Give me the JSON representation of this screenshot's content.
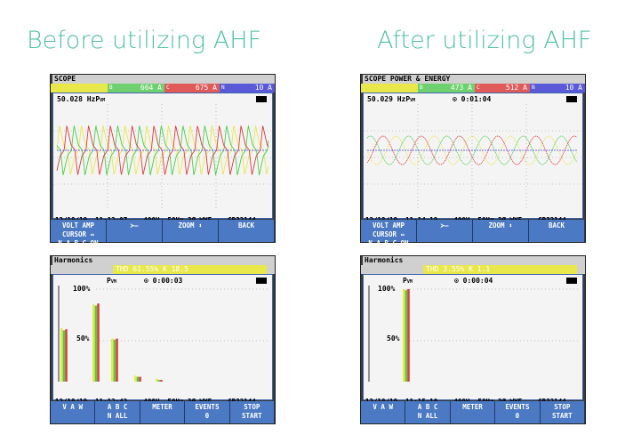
{
  "headings": {
    "before": "Before utilizing AHF",
    "after": "After utilizing AHF"
  },
  "panels": {
    "scope_before": {
      "title": "SCOPE",
      "meters": [
        {
          "label": "",
          "value": "",
          "color": "#e8e84a"
        },
        {
          "label": "B",
          "value": "664",
          "unit": "A",
          "color": "#6fd06f"
        },
        {
          "label": "C",
          "value": "675",
          "unit": "A",
          "color": "#e05a5a"
        },
        {
          "label": "N",
          "value": "10",
          "unit": "A",
          "color": "#5a5ad8"
        }
      ],
      "freq": "50.028 HzP",
      "freq_sub": "VM",
      "status": "12/18/19  11:12:07    400V  50Hz 3Ø WYE    GR32144",
      "softkeys": [
        {
          "line1": "VOLT AMP CURSOR ⇔",
          "line2": "N A B C  ON OFF"
        },
        {
          "line1": "",
          "line2": "≻—"
        },
        {
          "line1": "",
          "line2": "ZOOM ⬍"
        },
        {
          "line1": "",
          "line2": "BACK"
        }
      ]
    },
    "scope_after": {
      "title": "SCOPE POWER & ENERGY",
      "meters": [
        {
          "label": "",
          "value": "",
          "color": "#e8e84a"
        },
        {
          "label": "B",
          "value": "473",
          "unit": "A",
          "color": "#6fd06f"
        },
        {
          "label": "C",
          "value": "512",
          "unit": "A",
          "color": "#e05a5a"
        },
        {
          "label": "N",
          "value": "10",
          "unit": "A",
          "color": "#5a5ad8"
        }
      ],
      "freq": "50.029 HzP",
      "freq_sub": "VM",
      "timer": "⊙   0:01:04",
      "status": "12/18/19  11:14:19    400V  50Hz 3Ø WYE    GR32144",
      "softkeys": [
        {
          "line1": "VOLT AMP CURSOR ⇔",
          "line2": "N A B C  ON OFF"
        },
        {
          "line1": "",
          "line2": "≻—"
        },
        {
          "line1": "",
          "line2": "ZOOM ⬍"
        },
        {
          "line1": "",
          "line2": "BACK"
        }
      ]
    },
    "harm_before": {
      "title": "Harmonics",
      "thd": "THD  61.55% K   18.5",
      "pvm": "P",
      "pvm_sub": "VM",
      "timer": "⊙   0:00:03",
      "label_100": "100%",
      "label_50": "50%",
      "xlabels": [
        "THDDC",
        "1",
        "3",
        "5",
        "7",
        "9",
        "11",
        "13",
        "15",
        "17"
      ],
      "status": "12/18/19  11:12:42    400V  50Hz 3Ø WYE    GR32144",
      "softkeys": [
        {
          "line1": "",
          "line2": "V A W"
        },
        {
          "line1": "A  B  C",
          "line2": "N  ALL"
        },
        {
          "line1": "",
          "line2": "METER"
        },
        {
          "line1": "EVENTS",
          "line2": "0"
        },
        {
          "line1": "STOP",
          "line2": "START"
        }
      ]
    },
    "harm_after": {
      "title": "Harmonics",
      "thd": "THD   3.55% K    1.1",
      "pvm": "P",
      "pvm_sub": "VM",
      "timer": "⊙   0:00:04",
      "label_100": "100%",
      "label_50": "50%",
      "xlabels": [
        "THDDC",
        "1",
        "3",
        "5",
        "7",
        "9",
        "11",
        "13",
        "15",
        "17"
      ],
      "status": "12/18/19  11:15:10    400V  50Hz 3Ø WYE    GR32144",
      "softkeys": [
        {
          "line1": "",
          "line2": "V A W"
        },
        {
          "line1": "A  B  C",
          "line2": "N  ALL"
        },
        {
          "line1": "",
          "line2": "METER"
        },
        {
          "line1": "EVENTS",
          "line2": "0"
        },
        {
          "line1": "STOP",
          "line2": "START"
        }
      ]
    }
  },
  "chart_data": [
    {
      "type": "bar",
      "categories": [
        "THDDC",
        "1",
        "3",
        "5",
        "7",
        "9",
        "11",
        "13",
        "15",
        "17"
      ],
      "series": [
        {
          "values": [
            62,
            85,
            52,
            16,
            13,
            9,
            7,
            5,
            4,
            4
          ]
        },
        {
          "values": [
            60,
            84,
            51,
            15,
            12,
            8,
            6,
            4,
            3,
            3
          ]
        },
        {
          "values": [
            61,
            86,
            52,
            15,
            12,
            8,
            6,
            5,
            3,
            3
          ]
        }
      ],
      "ylim": [
        0,
        100
      ]
    },
    {
      "type": "bar",
      "categories": [
        "THDDC",
        "1",
        "3",
        "5",
        "7",
        "9",
        "11",
        "13",
        "15",
        "17"
      ],
      "series": [
        {
          "values": [
            2,
            100,
            1,
            1,
            0.5,
            0.5,
            0.5,
            0.5,
            0.5,
            0.5
          ]
        },
        {
          "values": [
            2,
            99,
            1,
            1,
            0.5,
            0.5,
            0.5,
            0.5,
            0.5,
            0.5
          ]
        },
        {
          "values": [
            2,
            100,
            1,
            1,
            0.5,
            0.5,
            0.5,
            0.5,
            0.5,
            0.5
          ]
        }
      ],
      "ylim": [
        0,
        100
      ]
    }
  ],
  "colors": {
    "phase_a": "#e8e84a",
    "phase_b": "#4ad04a",
    "phase_c": "#e03c3c",
    "neutral": "#4a4ad8",
    "softkey": "#4b79c4"
  }
}
